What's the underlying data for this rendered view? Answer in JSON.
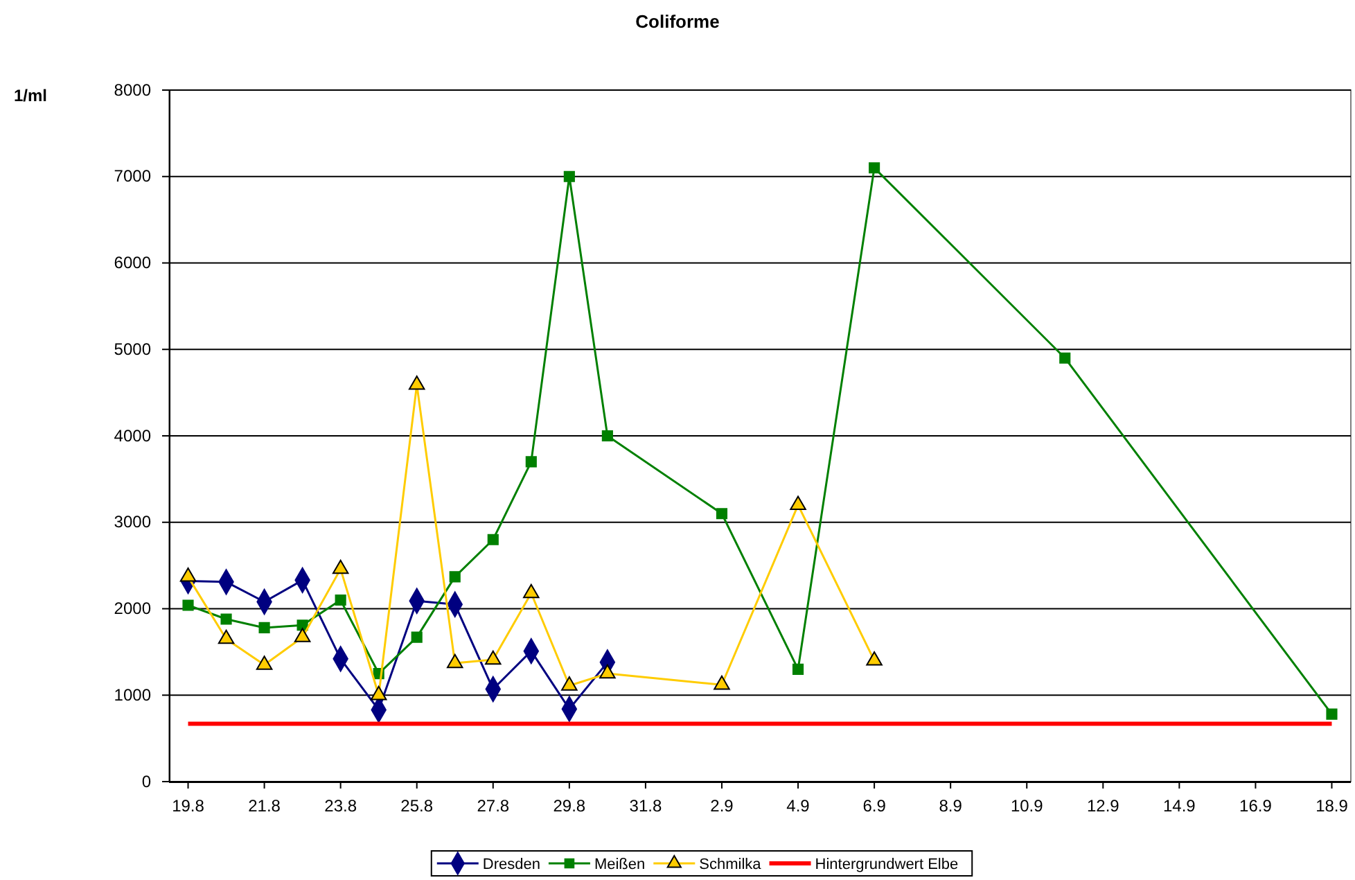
{
  "chart_data": {
    "type": "line",
    "title": "Coliforme",
    "ylabel": "1/ml",
    "xlim": [
      "--08-19",
      "--09-18"
    ],
    "xticks": [
      {
        "value": "--08-19",
        "label": "19.8"
      },
      {
        "value": "--08-21",
        "label": "21.8"
      },
      {
        "value": "--08-23",
        "label": "23.8"
      },
      {
        "value": "--08-25",
        "label": "25.8"
      },
      {
        "value": "--08-27",
        "label": "27.8"
      },
      {
        "value": "--08-29",
        "label": "29.8"
      },
      {
        "value": "--08-31",
        "label": "31.8"
      },
      {
        "value": "--09-02",
        "label": "2.9"
      },
      {
        "value": "--09-04",
        "label": "4.9"
      },
      {
        "value": "--09-06",
        "label": "6.9"
      },
      {
        "value": "--09-08",
        "label": "8.9"
      },
      {
        "value": "--09-10",
        "label": "10.9"
      },
      {
        "value": "--09-12",
        "label": "12.9"
      },
      {
        "value": "--09-14",
        "label": "14.9"
      },
      {
        "value": "--09-16",
        "label": "16.9"
      },
      {
        "value": "--09-18",
        "label": "18.9"
      }
    ],
    "ylim": [
      0,
      8000
    ],
    "yticks": [
      0,
      1000,
      2000,
      3000,
      4000,
      5000,
      6000,
      7000,
      8000
    ],
    "grid": "y",
    "legend": "bottom",
    "series": [
      {
        "name": "Dresden",
        "color": "#000080",
        "marker": "diamond",
        "x": [
          "--08-19",
          "--08-20",
          "--08-21",
          "--08-22",
          "--08-23",
          "--08-24",
          "--08-25",
          "--08-26",
          "--08-27",
          "--08-28",
          "--08-29",
          "--08-30"
        ],
        "values": [
          2320,
          2310,
          2080,
          2330,
          1420,
          830,
          2090,
          2050,
          1070,
          1510,
          840,
          1380
        ]
      },
      {
        "name": "Meißen",
        "color": "#008000",
        "marker": "square",
        "x": [
          "--08-19",
          "--08-20",
          "--08-21",
          "--08-22",
          "--08-23",
          "--08-24",
          "--08-25",
          "--08-26",
          "--08-27",
          "--08-28",
          "--08-29",
          "--08-30",
          "--09-02",
          "--09-04",
          "--09-06",
          "--09-11",
          "--09-18"
        ],
        "values": [
          2040,
          1880,
          1780,
          1810,
          2100,
          1250,
          1670,
          2370,
          2800,
          3700,
          7000,
          4000,
          3100,
          1300,
          7100,
          4900,
          780
        ]
      },
      {
        "name": "Schmilka",
        "color": "#ffcc00",
        "marker": "triangle",
        "x": [
          "--08-19",
          "--08-20",
          "--08-21",
          "--08-22",
          "--08-23",
          "--08-24",
          "--08-25",
          "--08-26",
          "--08-27",
          "--08-28",
          "--08-29",
          "--08-30",
          "--09-02",
          "--09-04",
          "--09-06"
        ],
        "values": [
          2370,
          1650,
          1350,
          1670,
          2460,
          1000,
          4590,
          1370,
          1410,
          2180,
          1110,
          1250,
          1120,
          3200,
          1400
        ]
      },
      {
        "name": "Hintergrundwert Elbe",
        "color": "#ff0000",
        "marker": "none",
        "x": [
          "--08-19",
          "--09-18"
        ],
        "values": [
          670,
          670
        ]
      }
    ]
  }
}
